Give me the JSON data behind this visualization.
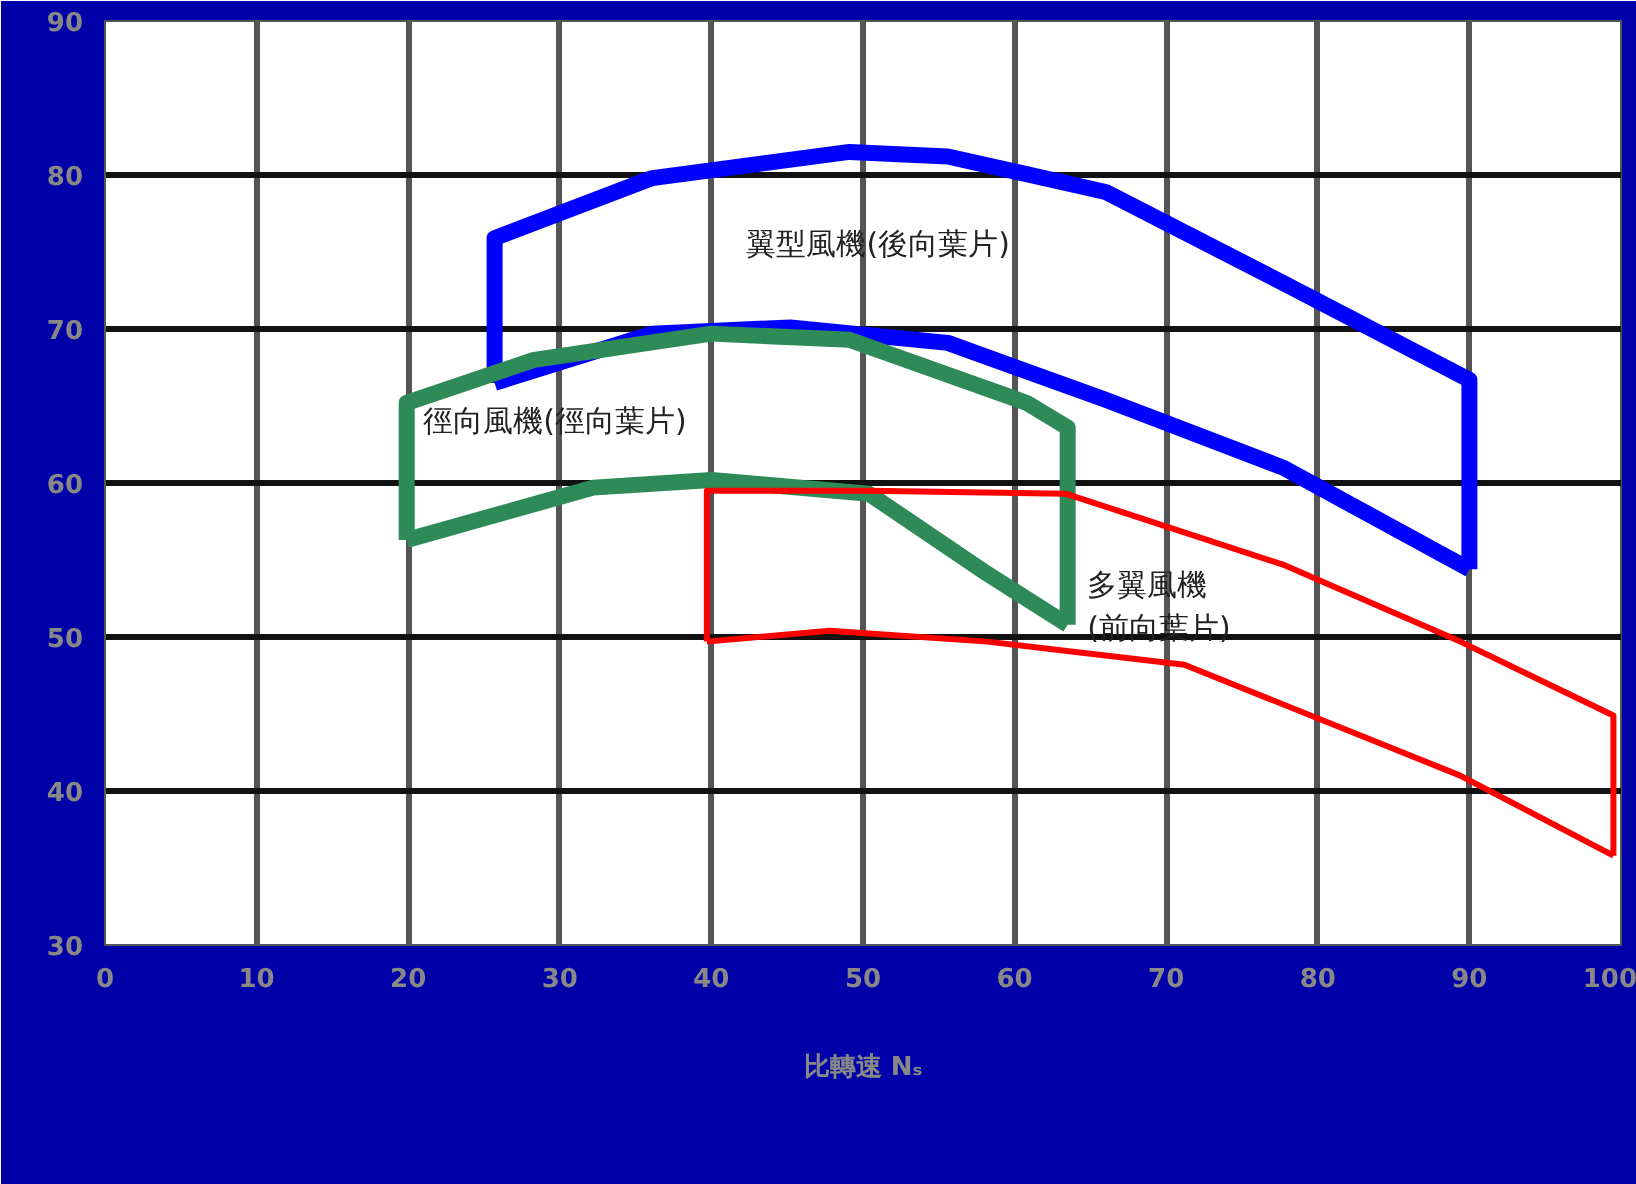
{
  "chart_data": {
    "type": "line",
    "xlabel": "比轉速 Nₛ",
    "xlim": [
      0,
      100
    ],
    "ylim": [
      30,
      90
    ],
    "xticks": [
      0,
      10,
      20,
      30,
      40,
      50,
      60,
      70,
      80,
      90,
      100
    ],
    "yticks": [
      30,
      40,
      50,
      60,
      70,
      80,
      90
    ],
    "grid": true,
    "marker": "none",
    "line_style": "solid",
    "series": [
      {
        "name": "翼型風機(後向葉片)",
        "color": "#0000ff",
        "x": [
          25.7,
          25.7,
          36.1,
          49.1,
          55.6,
          66.0,
          77.7,
          90.0,
          90.0
        ],
        "values": [
          66.5,
          75.9,
          79.8,
          81.5,
          81.2,
          78.9,
          73.0,
          66.7,
          54.4
        ]
      },
      {
        "color": "#0000ff",
        "x": [
          25.7,
          36.1,
          45.2,
          55.6,
          66.0,
          77.7,
          90.0
        ],
        "values": [
          66.5,
          69.7,
          70.1,
          69.1,
          65.4,
          61.0,
          54.4
        ]
      },
      {
        "name": "徑向風機(徑向葉片)",
        "color": "#2e8b57",
        "x": [
          19.9,
          19.9,
          28.3,
          40.0,
          49.1,
          60.8,
          63.5,
          63.5
        ],
        "values": [
          56.3,
          65.2,
          68.0,
          69.7,
          69.3,
          65.2,
          63.6,
          50.8
        ]
      },
      {
        "color": "#2e8b57",
        "x": [
          19.9,
          32.2,
          40.0,
          50.4,
          58.2,
          63.5
        ],
        "values": [
          56.3,
          59.7,
          60.2,
          59.3,
          54.1,
          50.8
        ]
      },
      {
        "name": "多翼風機\n(前向葉片)",
        "color": "#ff0000",
        "x": [
          39.7,
          39.7,
          50.4,
          63.4,
          77.7,
          89.4,
          99.5,
          99.5
        ],
        "values": [
          49.7,
          59.5,
          59.5,
          59.3,
          54.7,
          49.7,
          44.9,
          35.8
        ]
      },
      {
        "color": "#ff0000",
        "x": [
          39.7,
          47.8,
          58.2,
          71.2,
          89.4,
          99.5
        ],
        "values": [
          49.7,
          50.4,
          49.7,
          48.2,
          41.0,
          35.8
        ]
      }
    ]
  }
}
